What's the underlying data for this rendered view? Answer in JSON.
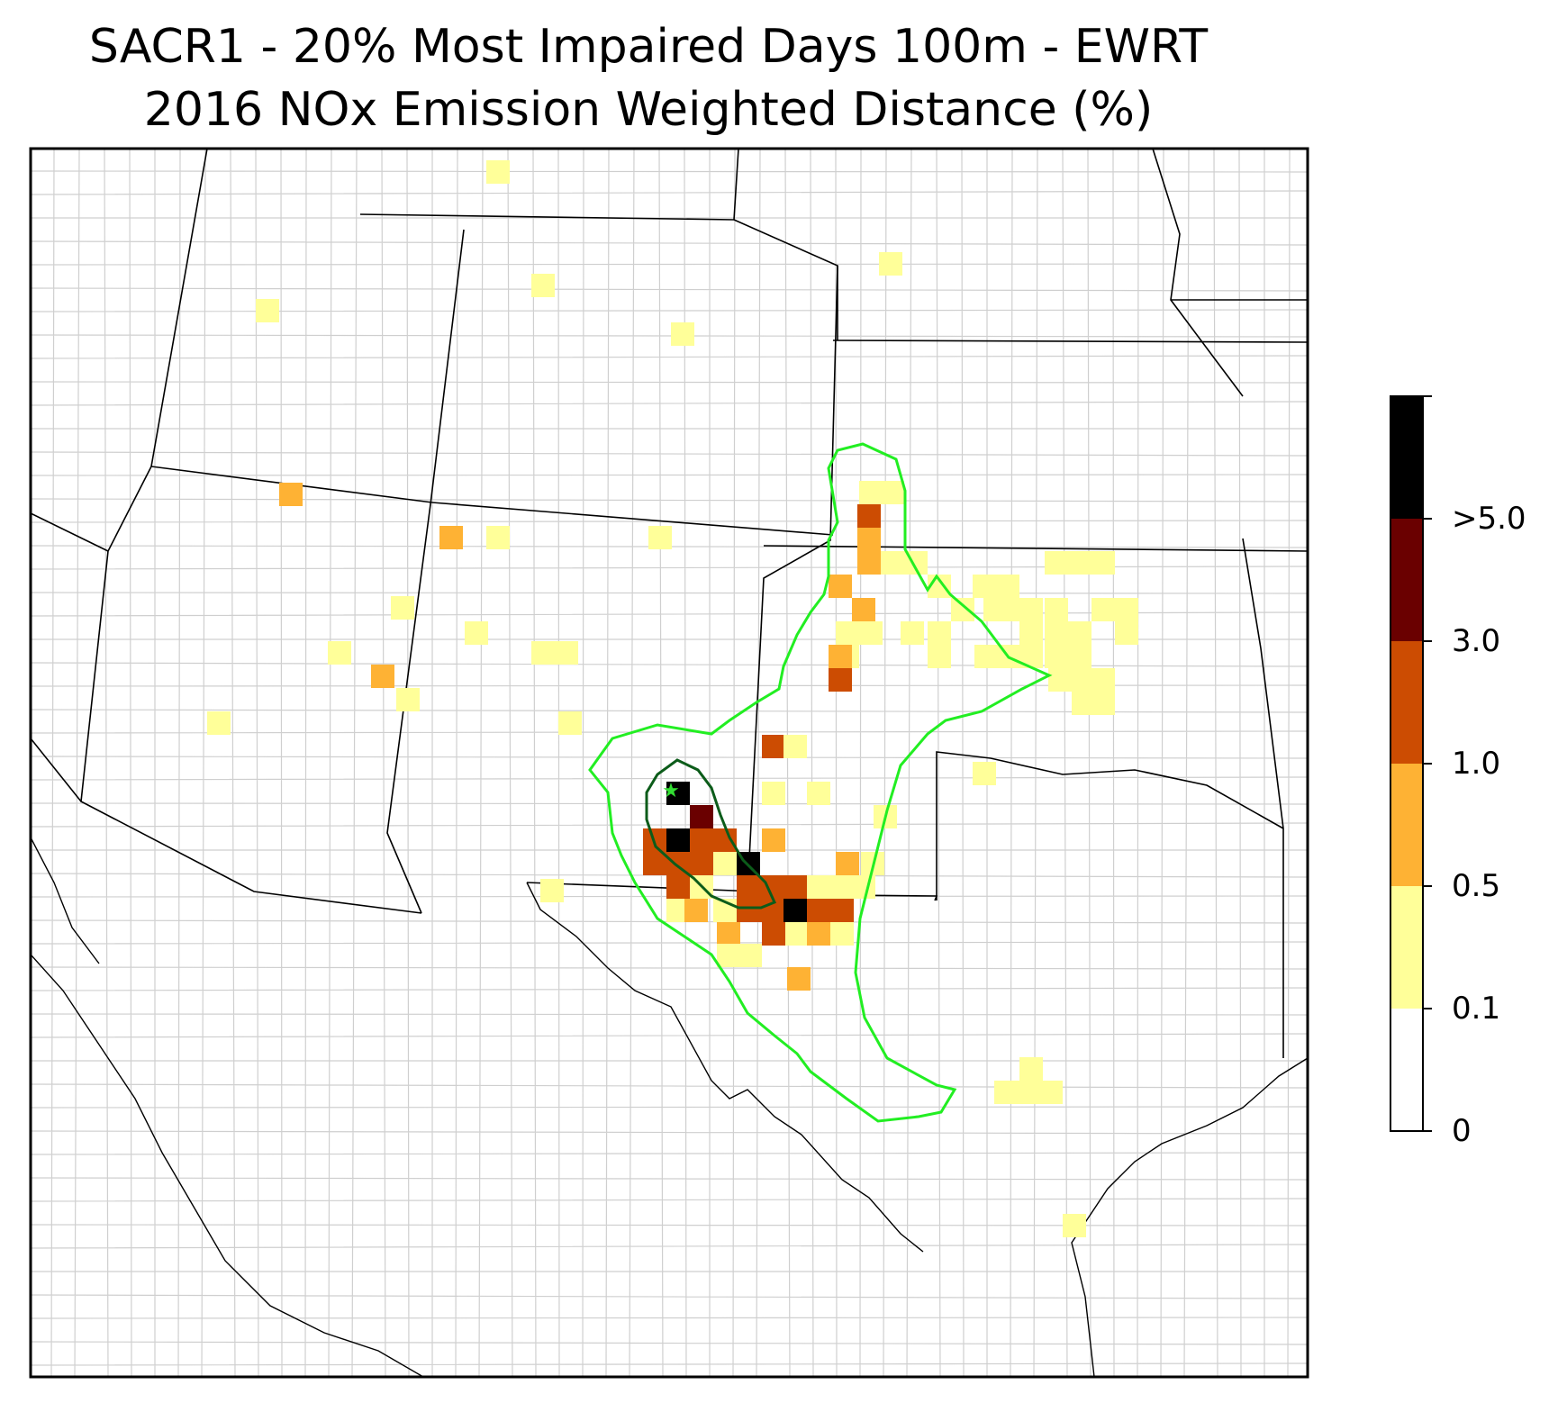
{
  "title": {
    "line1": "SACR1 - 20% Most Impaired Days 100m - EWRT",
    "line2": "2016 NOx Emission Weighted Distance (%)"
  },
  "colorbar": {
    "levels": [
      {
        "label": "0",
        "value": 0,
        "color": "#ffffff"
      },
      {
        "label": "0.1",
        "value": 0.1,
        "color": "#ffff99"
      },
      {
        "label": "0.5",
        "value": 0.5,
        "color": "#feb234"
      },
      {
        "label": "1.0",
        "value": 1.0,
        "color": "#cc4c02"
      },
      {
        "label": "3.0",
        "value": 3.0,
        "color": "#6a0000"
      },
      {
        "label": ">5.0",
        "value": 5.0,
        "color": "#000000"
      }
    ],
    "top_color": "#000000"
  },
  "colors": {
    "outer_contour": "#22ee22",
    "inner_contour": "#0c5c1a",
    "site_marker": "#33dd33",
    "county_lines": "#a0a0a0",
    "state_lines": "#000000"
  },
  "site_marker": {
    "icon": "star-icon",
    "name": "SACR1"
  }
}
